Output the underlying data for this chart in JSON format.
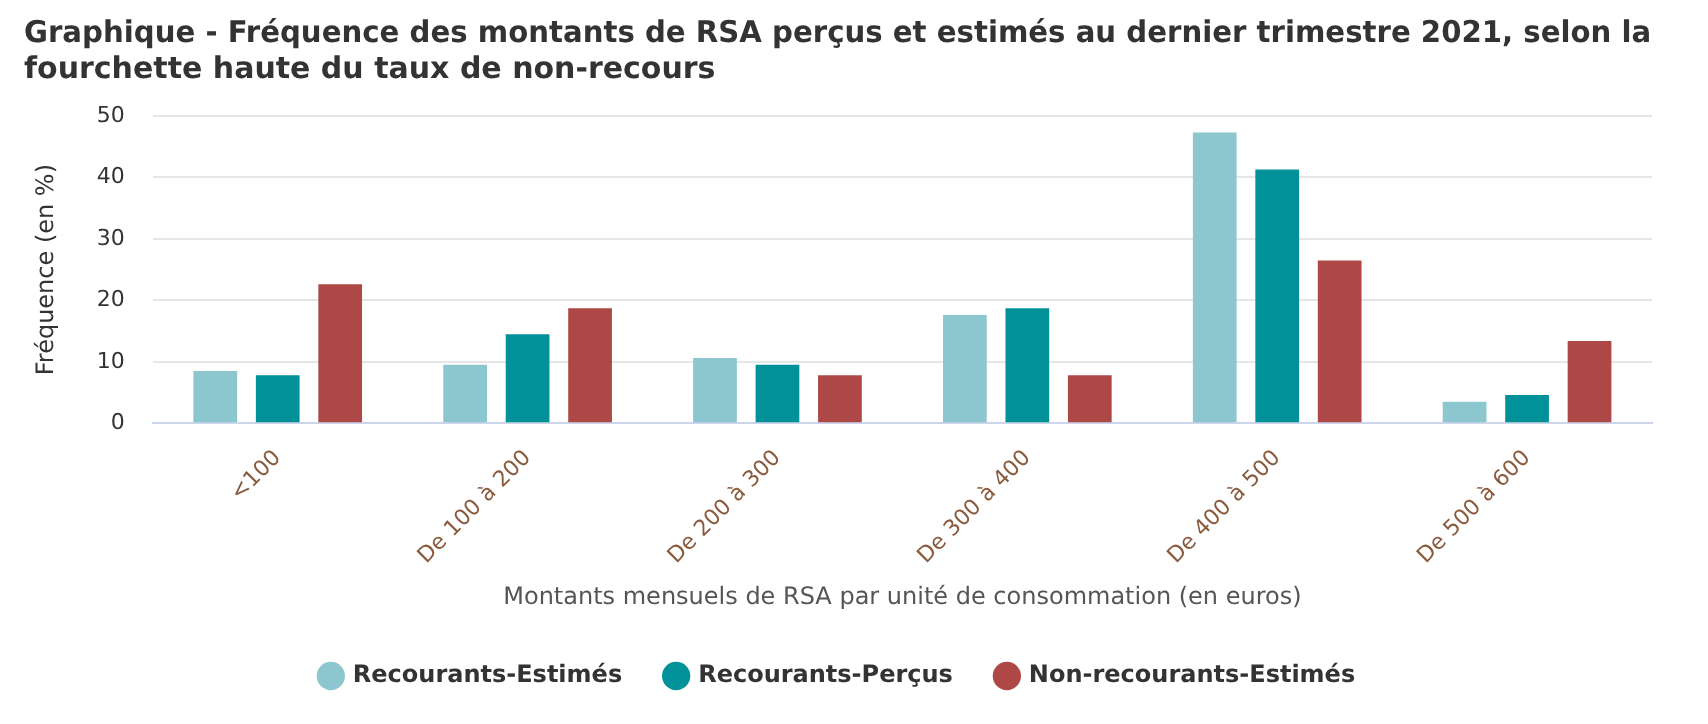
{
  "chart_data": {
    "type": "bar",
    "title": "Graphique - Fréquence des montants de RSA perçus et estimés au dernier trimestre 2021, selon la fourchette haute du taux de non-recours",
    "xlabel": "Montants mensuels de RSA par unité de consommation (en euros)",
    "ylabel": "Fréquence (en %)",
    "categories": [
      "<100",
      "De 100 à 200",
      "De 200 à 300",
      "De 300 à 400",
      "De 400 à 500",
      "De 500 à 600"
    ],
    "series": [
      {
        "name": "Recourants-Estimés",
        "color": "#8cc6ce",
        "values": [
          8.5,
          9.5,
          10.6,
          17.6,
          47.3,
          3.5
        ]
      },
      {
        "name": "Recourants-Perçus",
        "color": "#009298",
        "values": [
          7.8,
          14.5,
          9.5,
          18.7,
          41.3,
          4.6
        ]
      },
      {
        "name": "Non-recourants-Estimés",
        "color": "#ad4847",
        "values": [
          22.6,
          18.7,
          7.8,
          7.8,
          26.5,
          13.4
        ]
      }
    ],
    "ylim": [
      0,
      50
    ],
    "yticks": [
      0,
      10,
      20,
      30,
      40,
      50
    ],
    "grid": "y",
    "legend": "bottom"
  }
}
